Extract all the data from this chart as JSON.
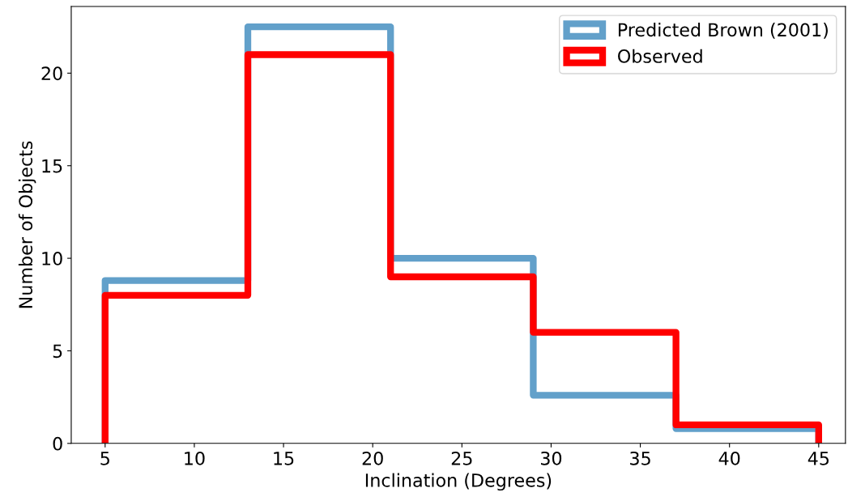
{
  "chart_data": {
    "type": "histogram",
    "xlabel": "Inclination (Degrees)",
    "ylabel": "Number of Objects",
    "bins": [
      5,
      13,
      21,
      29,
      37,
      45
    ],
    "series": [
      {
        "name": "Predicted Brown (2001)",
        "color": "#62a0ca",
        "values": [
          8.8,
          22.5,
          10,
          2.6,
          0.8
        ]
      },
      {
        "name": "Observed",
        "color": "#ff0000",
        "values": [
          8,
          21,
          9,
          6,
          1
        ]
      }
    ],
    "xlim": [
      3.1,
      46.5
    ],
    "ylim": [
      0,
      23.6
    ],
    "xticks": [
      5,
      10,
      15,
      20,
      25,
      30,
      35,
      40,
      45
    ],
    "yticks": [
      0,
      5,
      10,
      15,
      20
    ],
    "legend": "top right",
    "grid": false
  }
}
